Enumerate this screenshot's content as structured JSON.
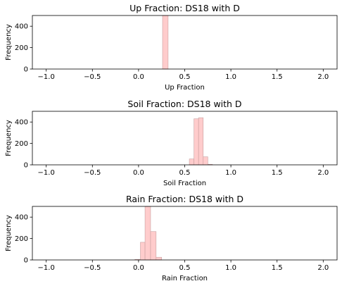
{
  "chart_data": [
    {
      "type": "bar",
      "title": "Up Fraction: DS18 with D",
      "xlabel": "Up Fraction",
      "ylabel": "Frequency",
      "xlim": [
        -1.15,
        2.15
      ],
      "ylim": [
        0,
        500
      ],
      "xticks": [
        "−1.0",
        "−0.5",
        "0.0",
        "0.5",
        "1.0",
        "1.5",
        "2.0"
      ],
      "xtick_values": [
        -1.0,
        -0.5,
        0.0,
        0.5,
        1.0,
        1.5,
        2.0
      ],
      "yticks": [
        "0",
        "200",
        "400"
      ],
      "ytick_values": [
        0,
        200,
        400
      ],
      "bar_color": "#ffcccc",
      "edge_color": "#c8a0a0",
      "bins": [
        {
          "x0": 0.26,
          "x1": 0.32,
          "value": 500
        }
      ]
    },
    {
      "type": "bar",
      "title": "Soil Fraction: DS18 with D",
      "xlabel": "Soil Fraction",
      "ylabel": "Frequency",
      "xlim": [
        -1.15,
        2.15
      ],
      "ylim": [
        0,
        500
      ],
      "xticks": [
        "−1.0",
        "−0.5",
        "0.0",
        "0.5",
        "1.0",
        "1.5",
        "2.0"
      ],
      "xtick_values": [
        -1.0,
        -0.5,
        0.0,
        0.5,
        1.0,
        1.5,
        2.0
      ],
      "yticks": [
        "0",
        "200",
        "400"
      ],
      "ytick_values": [
        0,
        200,
        400
      ],
      "bar_color": "#ffcccc",
      "edge_color": "#c8a0a0",
      "bins": [
        {
          "x0": 0.55,
          "x1": 0.6,
          "value": 55
        },
        {
          "x0": 0.6,
          "x1": 0.65,
          "value": 430
        },
        {
          "x0": 0.65,
          "x1": 0.7,
          "value": 440
        },
        {
          "x0": 0.7,
          "x1": 0.75,
          "value": 75
        },
        {
          "x0": 0.75,
          "x1": 0.8,
          "value": 5
        }
      ]
    },
    {
      "type": "bar",
      "title": "Rain Fraction: DS18 with D",
      "xlabel": "Rain Fraction",
      "ylabel": "Frequency",
      "xlim": [
        -1.15,
        2.15
      ],
      "ylim": [
        0,
        500
      ],
      "xticks": [
        "−1.0",
        "−0.5",
        "0.0",
        "0.5",
        "1.0",
        "1.5",
        "2.0"
      ],
      "xtick_values": [
        -1.0,
        -0.5,
        0.0,
        0.5,
        1.0,
        1.5,
        2.0
      ],
      "yticks": [
        "0",
        "200",
        "400"
      ],
      "ytick_values": [
        0,
        200,
        400
      ],
      "bar_color": "#ffcccc",
      "edge_color": "#c8a0a0",
      "bins": [
        {
          "x0": -0.04,
          "x1": 0.02,
          "value": 5
        },
        {
          "x0": 0.02,
          "x1": 0.07,
          "value": 165
        },
        {
          "x0": 0.07,
          "x1": 0.13,
          "value": 500
        },
        {
          "x0": 0.13,
          "x1": 0.19,
          "value": 265
        },
        {
          "x0": 0.19,
          "x1": 0.25,
          "value": 25
        }
      ]
    }
  ]
}
